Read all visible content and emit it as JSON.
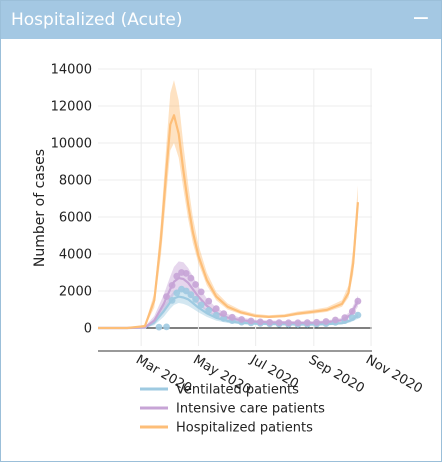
{
  "panel": {
    "title": "Hospitalized (Acute)",
    "collapse_symbol": "−"
  },
  "chart_data": {
    "type": "line",
    "title": "",
    "ylabel": "Number of cases",
    "xlabel": "",
    "ylim": [
      0,
      14000
    ],
    "xlim": [
      "2020-01-15",
      "2020-11-02"
    ],
    "yticks": [
      0,
      2000,
      4000,
      6000,
      8000,
      10000,
      12000,
      14000
    ],
    "xticks": [
      {
        "date": "2020-03-01",
        "label": "Mar 2020"
      },
      {
        "date": "2020-05-01",
        "label": "May 2020"
      },
      {
        "date": "2020-07-01",
        "label": "Jul 2020"
      },
      {
        "date": "2020-09-01",
        "label": "Sep 2020"
      },
      {
        "date": "2020-11-01",
        "label": "Nov 2020"
      }
    ],
    "grid": true,
    "legend_position": "bottom",
    "series": [
      {
        "name": "Ventilated patients",
        "color": "#9ecae1",
        "band": true,
        "x": [
          "2020-01-15",
          "2020-02-15",
          "2020-03-05",
          "2020-03-15",
          "2020-03-25",
          "2020-04-01",
          "2020-04-05",
          "2020-04-10",
          "2020-04-15",
          "2020-04-20",
          "2020-04-25",
          "2020-05-01",
          "2020-05-10",
          "2020-05-20",
          "2020-06-01",
          "2020-06-15",
          "2020-07-01",
          "2020-07-15",
          "2020-08-01",
          "2020-08-15",
          "2020-09-01",
          "2020-09-15",
          "2020-10-01",
          "2020-10-10",
          "2020-10-18"
        ],
        "values": [
          0,
          0,
          20,
          300,
          900,
          1400,
          1600,
          1700,
          1650,
          1550,
          1350,
          1100,
          800,
          550,
          380,
          280,
          240,
          220,
          200,
          190,
          190,
          210,
          260,
          400,
          650
        ],
        "lower": [
          0,
          0,
          0,
          150,
          600,
          1050,
          1250,
          1350,
          1300,
          1200,
          1050,
          850,
          600,
          400,
          270,
          200,
          170,
          150,
          140,
          130,
          130,
          150,
          190,
          300,
          500
        ],
        "upper": [
          0,
          0,
          60,
          500,
          1200,
          1750,
          2000,
          2100,
          2050,
          1950,
          1700,
          1400,
          1000,
          700,
          500,
          370,
          310,
          290,
          270,
          260,
          260,
          280,
          340,
          520,
          820
        ],
        "observed": {
          "x": [
            "2020-03-20",
            "2020-03-28",
            "2020-04-03",
            "2020-04-08",
            "2020-04-13",
            "2020-04-18",
            "2020-04-23",
            "2020-04-28",
            "2020-05-04",
            "2020-05-12",
            "2020-05-20",
            "2020-05-28",
            "2020-06-06",
            "2020-06-16",
            "2020-06-26",
            "2020-07-06",
            "2020-07-16",
            "2020-07-26",
            "2020-08-05",
            "2020-08-15",
            "2020-08-25",
            "2020-09-04",
            "2020-09-14",
            "2020-09-24",
            "2020-10-04",
            "2020-10-12",
            "2020-10-18"
          ],
          "values": [
            50,
            60,
            1500,
            1900,
            2100,
            2000,
            1800,
            1550,
            1250,
            950,
            700,
            520,
            400,
            320,
            280,
            250,
            230,
            210,
            200,
            190,
            200,
            210,
            240,
            300,
            400,
            560,
            700
          ]
        }
      },
      {
        "name": "Intensive care patients",
        "color": "#c7a4d6",
        "band": true,
        "x": [
          "2020-01-15",
          "2020-02-15",
          "2020-03-05",
          "2020-03-15",
          "2020-03-25",
          "2020-04-01",
          "2020-04-05",
          "2020-04-10",
          "2020-04-15",
          "2020-04-20",
          "2020-04-25",
          "2020-05-01",
          "2020-05-10",
          "2020-05-20",
          "2020-06-01",
          "2020-06-15",
          "2020-07-01",
          "2020-07-15",
          "2020-08-01",
          "2020-08-15",
          "2020-09-01",
          "2020-09-15",
          "2020-10-01",
          "2020-10-10",
          "2020-10-18"
        ],
        "values": [
          0,
          0,
          30,
          400,
          1300,
          2100,
          2500,
          2700,
          2650,
          2450,
          2100,
          1700,
          1200,
          820,
          560,
          420,
          340,
          310,
          290,
          280,
          280,
          320,
          420,
          700,
          1450
        ],
        "lower": [
          0,
          0,
          0,
          200,
          900,
          1500,
          1800,
          2000,
          1950,
          1800,
          1550,
          1250,
          900,
          620,
          420,
          320,
          260,
          240,
          220,
          210,
          210,
          240,
          320,
          550,
          1150
        ],
        "upper": [
          0,
          0,
          80,
          650,
          1800,
          2800,
          3300,
          3600,
          3550,
          3250,
          2800,
          2250,
          1600,
          1100,
          750,
          560,
          450,
          410,
          380,
          370,
          370,
          420,
          540,
          900,
          1750
        ],
        "observed": {
          "x": [
            "2020-03-28",
            "2020-04-03",
            "2020-04-08",
            "2020-04-13",
            "2020-04-18",
            "2020-04-23",
            "2020-04-28",
            "2020-05-04",
            "2020-05-12",
            "2020-05-20",
            "2020-05-28",
            "2020-06-06",
            "2020-06-16",
            "2020-06-26",
            "2020-07-06",
            "2020-07-16",
            "2020-07-26",
            "2020-08-05",
            "2020-08-15",
            "2020-08-25",
            "2020-09-04",
            "2020-09-14",
            "2020-09-24",
            "2020-10-04",
            "2020-10-12",
            "2020-10-18"
          ],
          "values": [
            1700,
            2300,
            2800,
            3000,
            2950,
            2700,
            2350,
            1950,
            1450,
            1050,
            780,
            580,
            460,
            380,
            330,
            300,
            290,
            280,
            280,
            290,
            310,
            350,
            430,
            560,
            900,
            1450
          ]
        }
      },
      {
        "name": "Hospitalized patients",
        "color": "#fdbe78",
        "band": true,
        "x": [
          "2020-01-15",
          "2020-02-15",
          "2020-03-05",
          "2020-03-15",
          "2020-03-22",
          "2020-03-28",
          "2020-04-01",
          "2020-04-05",
          "2020-04-10",
          "2020-04-15",
          "2020-04-20",
          "2020-04-25",
          "2020-05-01",
          "2020-05-10",
          "2020-05-20",
          "2020-06-01",
          "2020-06-15",
          "2020-07-01",
          "2020-07-15",
          "2020-08-01",
          "2020-08-15",
          "2020-09-01",
          "2020-09-15",
          "2020-10-01",
          "2020-10-08",
          "2020-10-13",
          "2020-10-18"
        ],
        "values": [
          0,
          0,
          100,
          1500,
          4800,
          8600,
          11000,
          11500,
          10500,
          8500,
          6700,
          5200,
          3900,
          2600,
          1700,
          1150,
          850,
          650,
          600,
          650,
          780,
          880,
          980,
          1300,
          1900,
          3500,
          6800
        ],
        "lower": [
          0,
          0,
          50,
          1100,
          3900,
          7300,
          9600,
          10000,
          9200,
          7500,
          5900,
          4600,
          3500,
          2300,
          1500,
          1000,
          750,
          580,
          540,
          580,
          690,
          780,
          870,
          1150,
          1650,
          2900,
          6000
        ],
        "upper": [
          0,
          0,
          180,
          1900,
          5700,
          10000,
          12700,
          13400,
          12300,
          9900,
          7800,
          6000,
          4500,
          3000,
          1950,
          1330,
          980,
          760,
          690,
          750,
          890,
          1000,
          1120,
          1500,
          2300,
          4300,
          7700
        ]
      }
    ]
  },
  "legend": [
    {
      "label": "Ventilated patients",
      "color": "#9ecae1"
    },
    {
      "label": "Intensive care patients",
      "color": "#c7a4d6"
    },
    {
      "label": "Hospitalized patients",
      "color": "#fdbe78"
    }
  ]
}
